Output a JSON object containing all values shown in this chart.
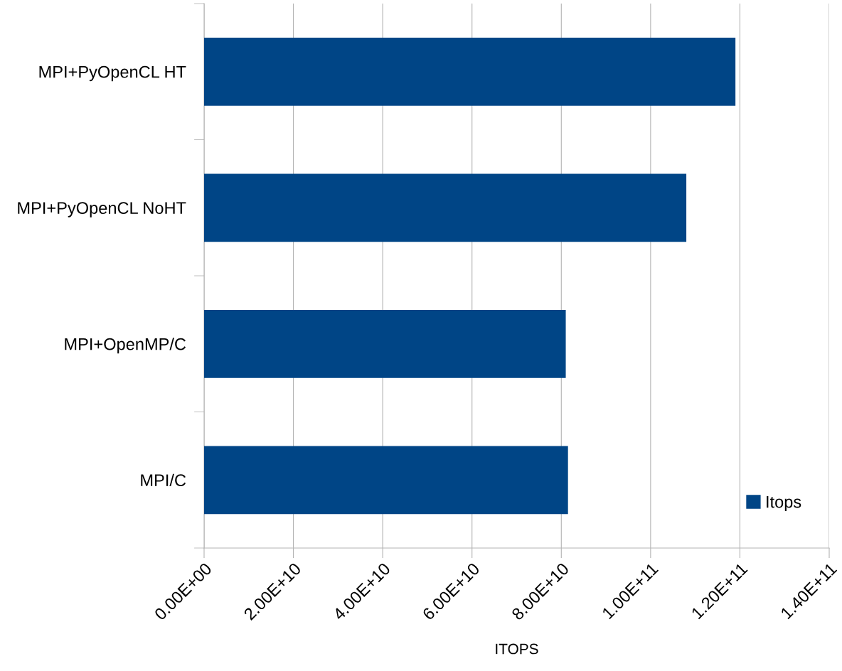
{
  "chart_data": {
    "type": "bar",
    "orientation": "horizontal",
    "xlabel": "ITOPS",
    "categories": [
      "MPI+PyOpenCL HT",
      "MPI+PyOpenCL NoHT",
      "MPI+OpenMP/C",
      "MPI/C"
    ],
    "series": [
      {
        "name": "Itops",
        "color": "#004586",
        "values": [
          119000000000.0,
          108000000000.0,
          81000000000.0,
          81500000000.0
        ]
      }
    ],
    "xlim": [
      0,
      140000000000.0
    ],
    "xticks": [
      {
        "value": 0,
        "label": "0.00E+00"
      },
      {
        "value": 20000000000.0,
        "label": "2.00E+10"
      },
      {
        "value": 40000000000.0,
        "label": "4.00E+10"
      },
      {
        "value": 60000000000.0,
        "label": "6.00E+10"
      },
      {
        "value": 80000000000.0,
        "label": "8.00E+10"
      },
      {
        "value": 100000000000.0,
        "label": "1.00E+11"
      },
      {
        "value": 120000000000.0,
        "label": "1.20E+11"
      },
      {
        "value": 140000000000.0,
        "label": "1.40E+11"
      }
    ],
    "grid": "x",
    "legend": "bottom right"
  }
}
